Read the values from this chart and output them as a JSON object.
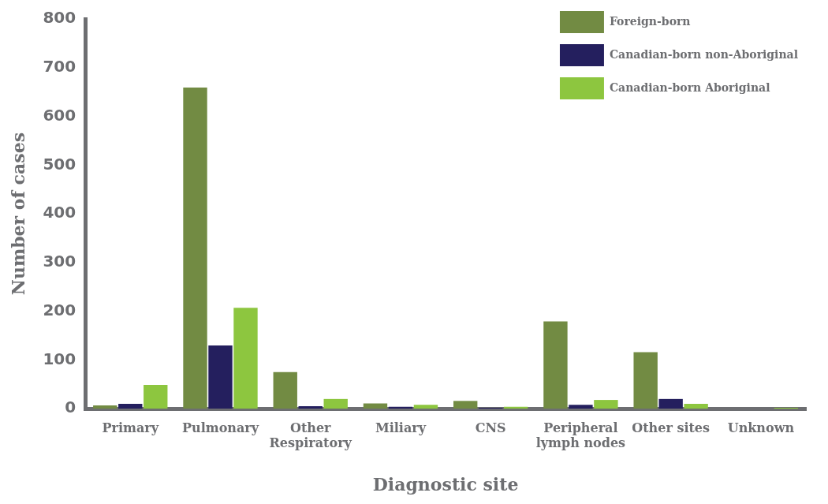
{
  "chart_data": {
    "type": "bar",
    "xlabel": "Diagnostic site",
    "ylabel": "Number of cases",
    "categories": [
      "Primary",
      "Pulmonary",
      "Other Respiratory",
      "Miliary",
      "CNS",
      "Peripheral lymph nodes",
      "Other sites",
      "Unknown"
    ],
    "series": [
      {
        "name": "Foreign-born",
        "color": "#728b43",
        "values": [
          7,
          659,
          75,
          11,
          16,
          179,
          116,
          null
        ]
      },
      {
        "name": "Canadian-born non-Aboriginal",
        "color": "#241f5e",
        "values": [
          10,
          130,
          5,
          4,
          2,
          8,
          20,
          null
        ]
      },
      {
        "name": "Canadian-born Aboriginal",
        "color": "#8dc63f",
        "values": [
          49,
          207,
          20,
          8,
          4,
          18,
          10,
          2
        ]
      }
    ],
    "ylim": [
      0,
      800
    ],
    "yticks": [
      0,
      100,
      200,
      300,
      400,
      500,
      600,
      700,
      800
    ],
    "grid": false,
    "legend": "top right"
  }
}
